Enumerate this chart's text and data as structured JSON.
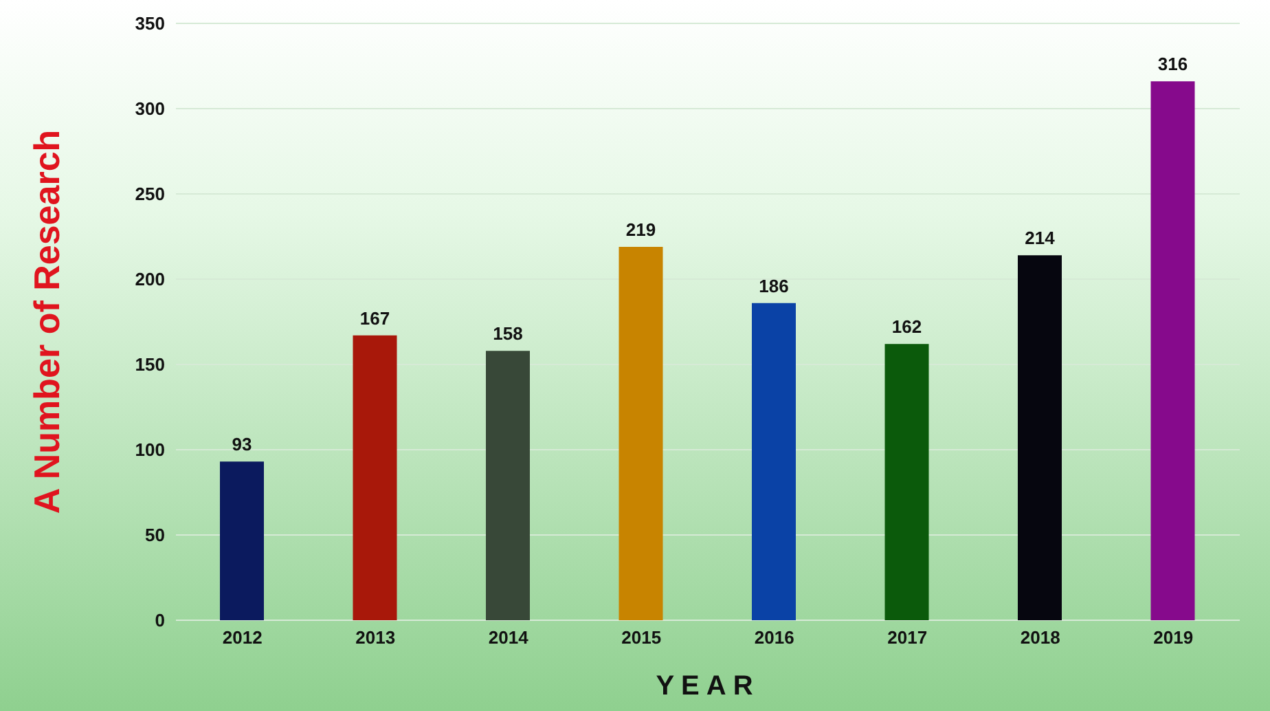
{
  "chart_data": {
    "type": "bar",
    "xlabel": "YEAR",
    "ylabel": "A Number of Research",
    "categories": [
      "2012",
      "2013",
      "2014",
      "2015",
      "2016",
      "2017",
      "2018",
      "2019"
    ],
    "values": [
      93,
      167,
      158,
      219,
      186,
      162,
      214,
      316
    ],
    "colors": [
      "#0b1a5e",
      "#a8180a",
      "#384838",
      "#c88400",
      "#0a42a6",
      "#0b5a0b",
      "#06060f",
      "#860a8c"
    ],
    "ylim": [
      0,
      350
    ],
    "yticks": [
      0,
      50,
      100,
      150,
      200,
      250,
      300,
      350
    ],
    "grid": "y",
    "data_labels": true
  }
}
